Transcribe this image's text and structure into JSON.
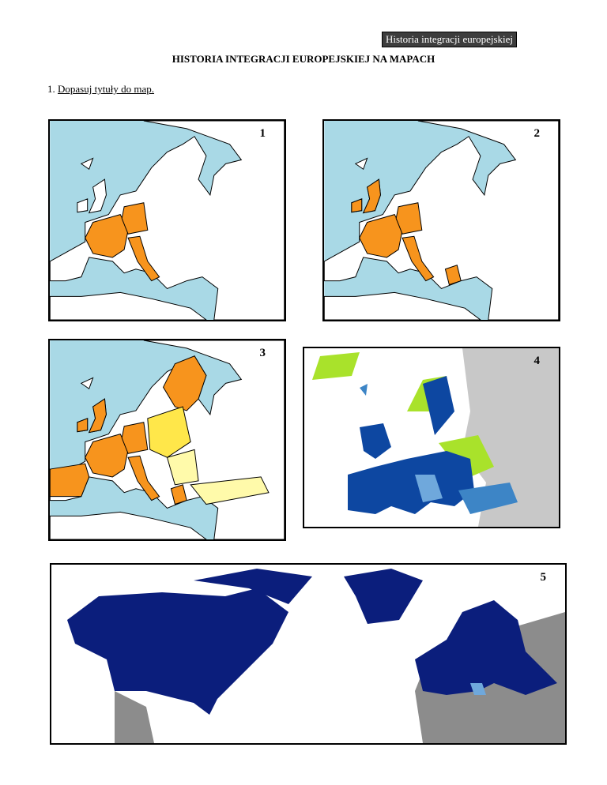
{
  "header": {
    "badge": "Historia integracji europejskiej"
  },
  "title": "HISTORIA INTEGRACJI EUROPEJSKIEJ NA MAPACH",
  "task": {
    "number": "1.",
    "text": "Dopasuj tytuły do map."
  },
  "maps": [
    {
      "label": "1"
    },
    {
      "label": "2"
    },
    {
      "label": "3"
    },
    {
      "label": "4"
    },
    {
      "label": "5"
    }
  ]
}
